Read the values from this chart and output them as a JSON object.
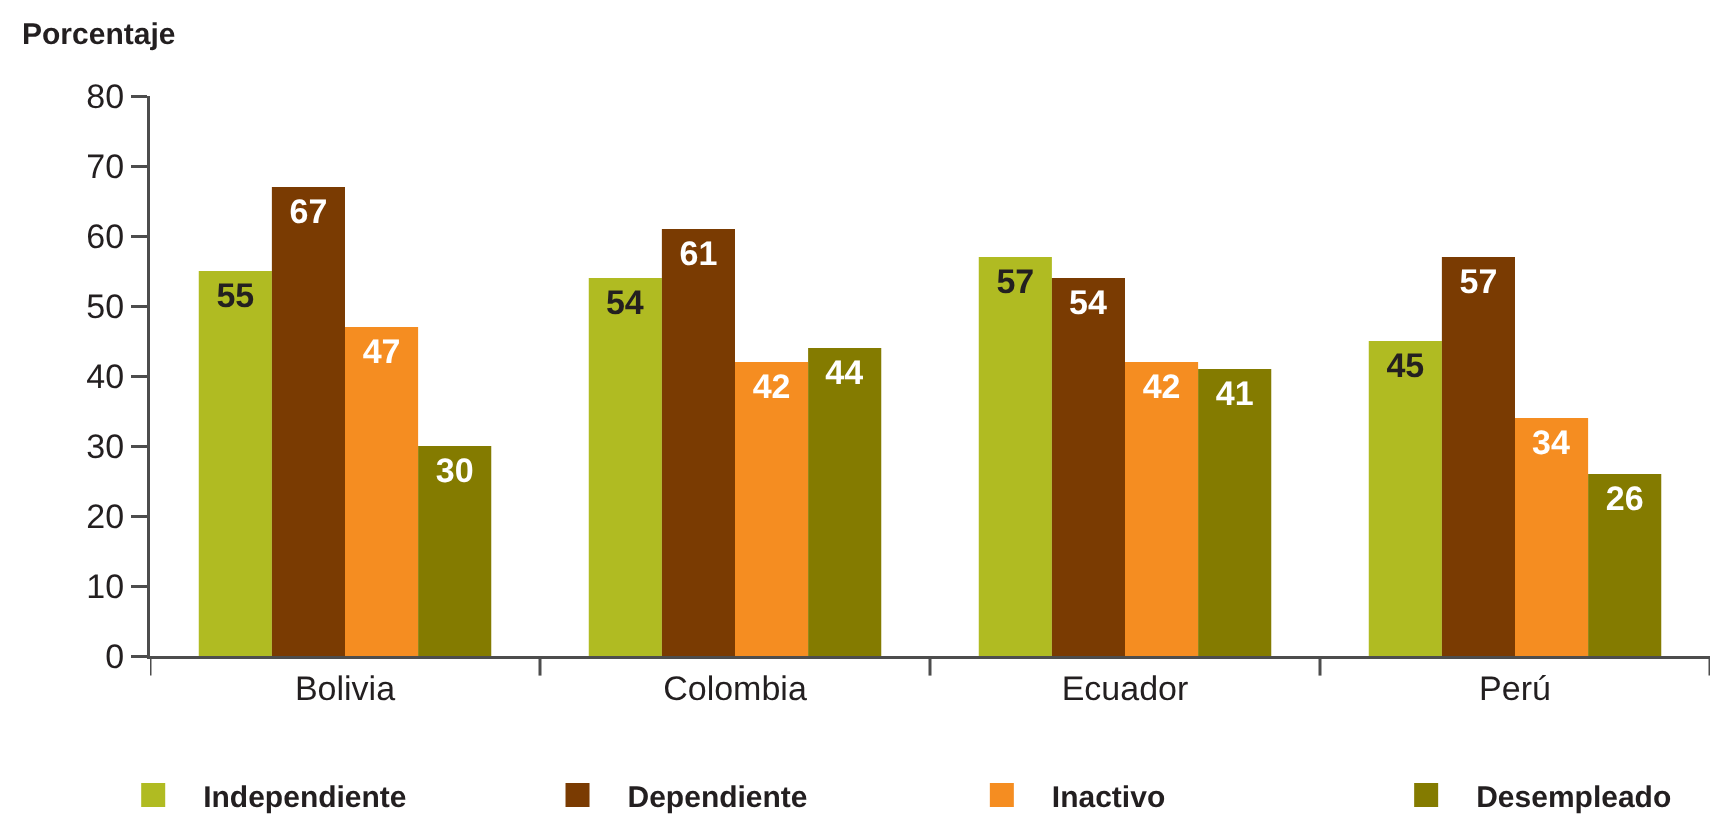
{
  "chart_data": {
    "type": "bar",
    "ylabel": "Porcentaje",
    "categories": [
      "Bolivia",
      "Colombia",
      "Ecuador",
      "Perú"
    ],
    "series": [
      {
        "name": "Independiente",
        "color": "#b0bb22",
        "values": [
          55,
          54,
          57,
          45
        ]
      },
      {
        "name": "Dependiente",
        "color": "#7a3b02",
        "values": [
          67,
          61,
          54,
          57
        ]
      },
      {
        "name": "Inactivo",
        "color": "#f58d21",
        "values": [
          47,
          42,
          42,
          34
        ]
      },
      {
        "name": "Desempleado",
        "color": "#847b00",
        "values": [
          30,
          44,
          41,
          26
        ]
      }
    ],
    "ylim": [
      0,
      80
    ],
    "yticks": [
      0,
      10,
      20,
      30,
      40,
      50,
      60,
      70,
      80
    ],
    "data_labels": true,
    "grid": false,
    "legend": "bottom"
  }
}
